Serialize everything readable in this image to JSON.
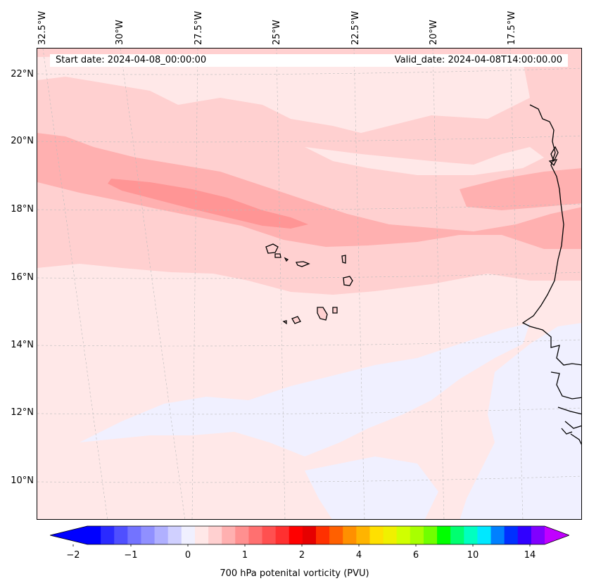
{
  "header": {
    "start_date": "Start date: 2024-04-08_00:00:00",
    "valid_date": "Valid_date: 2024-04-08T14:00:00.00"
  },
  "map": {
    "lat_labels": [
      "22°N",
      "20°N",
      "18°N",
      "16°N",
      "14°N",
      "12°N",
      "10°N"
    ],
    "lon_labels": [
      "32.5°W",
      "30°W",
      "27.5°W",
      "25°W",
      "22.5°W",
      "20°W",
      "17.5°W"
    ],
    "colors": {
      "level_neg": "#f0f0ff",
      "level_0": "#ffe8e8",
      "level_1": "#ffd0d0",
      "level_2": "#ffb0b0",
      "level_3": "#ff9595",
      "coast": "#000000"
    }
  },
  "colorbar": {
    "title": "700 hPa potenital vorticity (PVU)",
    "tick_labels": [
      "−2",
      "−1",
      "0",
      "1",
      "2",
      "4",
      "6",
      "10",
      "14"
    ],
    "colors": [
      "#0000ff",
      "#2a2aff",
      "#4f4fff",
      "#7373ff",
      "#9090ff",
      "#b0b0ff",
      "#d0d0ff",
      "#f0f0ff",
      "#ffe8e8",
      "#ffd0d0",
      "#ffb0b0",
      "#ff9090",
      "#ff7070",
      "#ff5050",
      "#ff3030",
      "#ff0000",
      "#e60000",
      "#ff3000",
      "#ff6000",
      "#ff9000",
      "#ffb400",
      "#ffe000",
      "#f0f000",
      "#d0ff00",
      "#a8ff00",
      "#70ff00",
      "#00ff00",
      "#00ff70",
      "#00ffc0",
      "#00e8ff",
      "#0080ff",
      "#0030ff",
      "#3000ff",
      "#8000ff"
    ],
    "extend_low_color": "#0000ff",
    "extend_high_color": "#c000ff"
  }
}
